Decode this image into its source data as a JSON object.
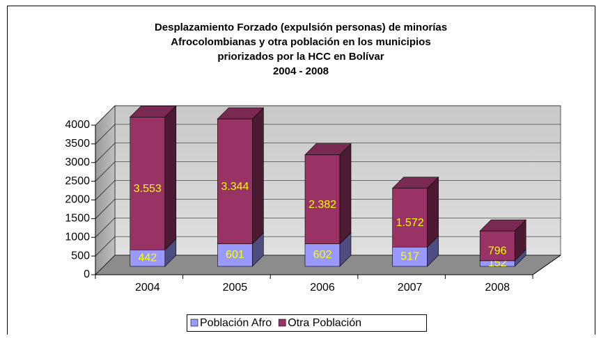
{
  "chart_data": {
    "type": "bar3d_stacked",
    "title": [
      "Desplazamiento Forzado (expulsión personas) de minorías",
      "Afrocolombianas y otra población en los municipios",
      "priorizados por la HCC en Bolívar",
      "2004 - 2008"
    ],
    "categories": [
      "2004",
      "2005",
      "2006",
      "2007",
      "2008"
    ],
    "series": [
      {
        "name": "Población Afro",
        "color": "#9999ff",
        "values": [
          442,
          601,
          602,
          517,
          152
        ],
        "value_labels": [
          "442",
          "601",
          "602",
          "517",
          "152"
        ]
      },
      {
        "name": "Otra Población",
        "color": "#993366",
        "values": [
          3553,
          3344,
          2382,
          1572,
          796
        ],
        "value_labels": [
          "3.553",
          "3.344",
          "2.382",
          "1.572",
          "796"
        ]
      }
    ],
    "ylim": [
      0,
      4000
    ],
    "yticks": [
      0,
      500,
      1000,
      1500,
      2000,
      2500,
      3000,
      3500,
      4000
    ],
    "grid": true,
    "legend": "bottom"
  }
}
